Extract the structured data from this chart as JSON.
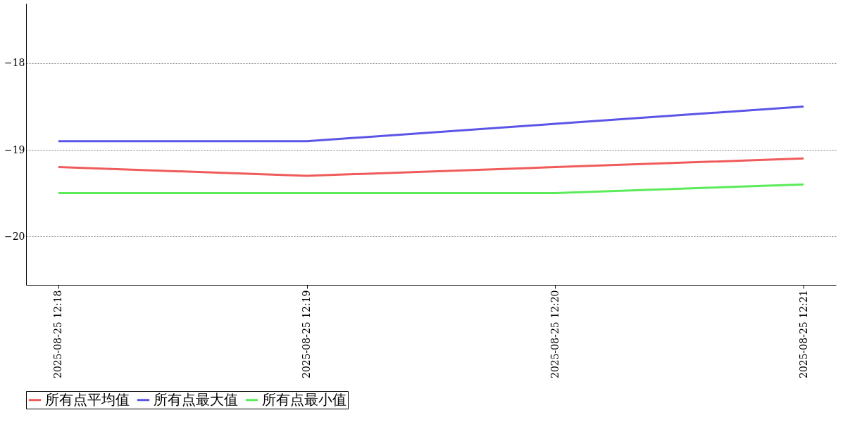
{
  "chart_data": {
    "type": "line",
    "categories": [
      "2025-08-25 12:18",
      "2025-08-25 12:19",
      "2025-08-25 12:20",
      "2025-08-25 12:21"
    ],
    "series": [
      {
        "name": "所有点平均值",
        "color": "#f05a5a",
        "values": [
          -19.2,
          -19.3,
          -19.2,
          -19.1
        ]
      },
      {
        "name": "所有点最大值",
        "color": "#5a55e6",
        "values": [
          -18.9,
          -18.9,
          -18.7,
          -18.5
        ]
      },
      {
        "name": "所有点最小值",
        "color": "#5aeb5a",
        "values": [
          -19.5,
          -19.5,
          -19.5,
          -19.4
        ]
      }
    ],
    "ylim": [
      -20.56,
      -17.31
    ],
    "yticks": [
      -20,
      -19,
      -18
    ],
    "grid": "y",
    "legend": "bottom",
    "marker": "none",
    "line_style": "solid"
  }
}
